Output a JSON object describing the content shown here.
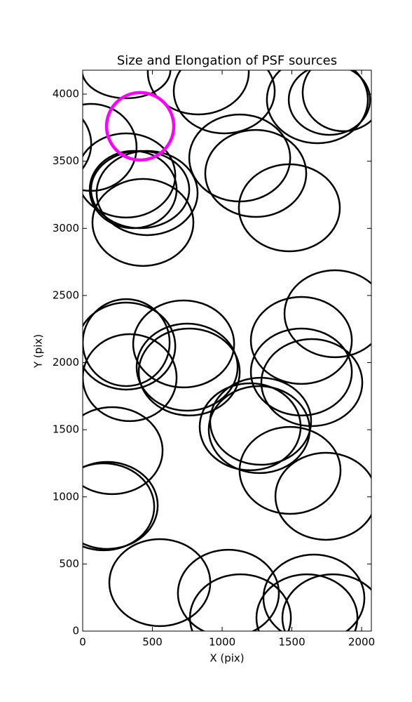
{
  "chart_data": {
    "type": "ellipse",
    "title": "Size and Elongation of PSF sources",
    "x_label": "X (pix)",
    "y_label": "Y (pix)",
    "xlim": [
      0,
      2070
    ],
    "ylim": [
      0,
      4178
    ],
    "xticks": [
      0,
      500,
      1000,
      1500,
      2000
    ],
    "yticks": [
      0,
      500,
      1000,
      1500,
      2000,
      2500,
      3000,
      3500,
      4000
    ],
    "series": [
      {
        "color": "#000000",
        "x": [
          312,
          -291,
          60,
          312,
          362,
          412,
          462,
          432,
          829,
          1015,
          1126,
          1241,
          1482,
          1683,
          1769,
          1869,
          312,
          312,
          337,
          724,
          749,
          764,
          1201,
          1276,
          1266,
          1568,
          1568,
          1643,
          1809,
          1487,
          1744,
          211,
          176,
          151,
          553,
          1045,
          1131,
          1608,
          1658,
          1794
        ],
        "y": [
          4178,
          3629,
          3603,
          3394,
          3289,
          3289,
          3263,
          3044,
          4162,
          4021,
          3524,
          3409,
          3153,
          3958,
          3958,
          4011,
          2149,
          2123,
          1888,
          2139,
          1966,
          1930,
          1522,
          1563,
          1501,
          2165,
          1930,
          1851,
          2364,
          1197,
          1004,
          1344,
          936,
          926,
          361,
          282,
          99,
          99,
          246,
          99
        ],
        "width": [
          634,
          704,
          653,
          704,
          623,
          704,
          724,
          724,
          724,
          724,
          724,
          724,
          724,
          724,
          583,
          583,
          623,
          704,
          673,
          724,
          724,
          724,
          724,
          724,
          724,
          724,
          724,
          724,
          724,
          724,
          724,
          724,
          724,
          724,
          724,
          724,
          724,
          724,
          724,
          724
        ],
        "height": [
          418,
          648,
          648,
          627,
          575,
          575,
          627,
          648,
          627,
          627,
          648,
          648,
          648,
          648,
          523,
          575,
          648,
          648,
          648,
          648,
          648,
          648,
          648,
          648,
          648,
          648,
          648,
          648,
          648,
          648,
          648,
          648,
          648,
          648,
          648,
          648,
          648,
          648,
          648,
          648
        ]
      },
      {
        "color": "#ff00ff",
        "x": [
          412
        ],
        "y": [
          3760
        ],
        "width": [
          482
        ],
        "height": [
          502
        ]
      }
    ]
  }
}
